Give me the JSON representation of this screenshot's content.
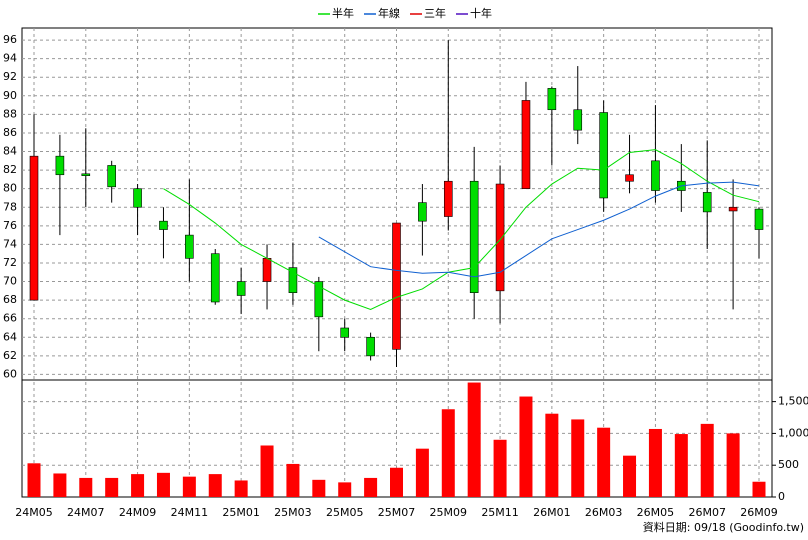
{
  "chart_data": {
    "type": "candlestick",
    "categories": [
      "24M05",
      null,
      "24M07",
      null,
      "24M09",
      null,
      "24M11",
      null,
      "25M01",
      null,
      "25M03",
      null,
      "25M05",
      null,
      "25M07",
      null,
      "25M09",
      null,
      "25M11",
      null,
      "26M01",
      null,
      "26M03",
      null,
      "26M05",
      null,
      "26M07",
      null,
      "26M09"
    ],
    "open": [
      68,
      83.5,
      81.6,
      82.5,
      80,
      76.5,
      75,
      73,
      70,
      70,
      71.5,
      70,
      65,
      64,
      62.7,
      78.5,
      77,
      80.8,
      69,
      80,
      90.8,
      88.5,
      88.2,
      80.8,
      83,
      80.8,
      79.6,
      77.6,
      77.8
    ],
    "high": [
      88,
      85.8,
      86.5,
      83,
      80.5,
      78,
      81,
      73.5,
      71.5,
      74,
      74.2,
      70.5,
      66,
      64.5,
      76.3,
      80.5,
      96,
      84.5,
      82.5,
      91.5,
      91,
      93.2,
      89.5,
      85.8,
      89,
      84.8,
      85.2,
      81,
      78
    ],
    "low": [
      68,
      75,
      78,
      78.5,
      75,
      72.5,
      70,
      67.5,
      66.5,
      67,
      67.5,
      62.5,
      62.5,
      61.5,
      60.8,
      72.8,
      75.5,
      66,
      65.5,
      80,
      82.5,
      84.8,
      77.5,
      79.5,
      78.5,
      77.5,
      73.5,
      67,
      72.5
    ],
    "close": [
      83.5,
      81.5,
      81.4,
      80.2,
      78,
      75.6,
      72.5,
      67.8,
      68.5,
      72.5,
      68.8,
      66.2,
      64,
      62,
      76.3,
      76.5,
      80.8,
      68.8,
      80.5,
      89.5,
      88.5,
      86.3,
      79,
      81.5,
      79.8,
      79.8,
      77.5,
      78,
      75.6
    ],
    "up_color": "#ff0000",
    "down_color": "#00dd00",
    "series": [
      {
        "name": "半年",
        "color": "#00dd00",
        "values": [
          null,
          null,
          null,
          null,
          null,
          80,
          78.3,
          76.3,
          74,
          72.5,
          71,
          69.5,
          68,
          67,
          68.3,
          69.2,
          71,
          71.5,
          74.5,
          78,
          80.5,
          82.2,
          82,
          83.9,
          84.2,
          82.7,
          80.8,
          79.3,
          78.6
        ]
      },
      {
        "name": "年線",
        "color": "#1060d0",
        "values": [
          null,
          null,
          null,
          null,
          null,
          null,
          null,
          null,
          null,
          null,
          null,
          74.8,
          73.2,
          71.6,
          71.2,
          70.9,
          71,
          70.5,
          71,
          72.8,
          74.6,
          75.6,
          76.6,
          77.8,
          79.2,
          80.3,
          80.6,
          80.7,
          80.3
        ]
      },
      {
        "name": "三年",
        "color": "#e00000",
        "values": [
          null,
          null,
          null,
          null,
          null,
          null,
          null,
          null,
          null,
          null,
          null,
          null,
          null,
          null,
          null,
          null,
          null,
          null,
          null,
          null,
          null,
          null,
          null,
          null,
          null,
          null,
          null,
          null,
          null
        ]
      },
      {
        "name": "十年",
        "color": "#5010c0",
        "values": [
          null,
          null,
          null,
          null,
          null,
          null,
          null,
          null,
          null,
          null,
          null,
          null,
          null,
          null,
          null,
          null,
          null,
          null,
          null,
          null,
          null,
          null,
          null,
          null,
          null,
          null,
          null,
          null,
          null
        ]
      }
    ],
    "ylim": [
      59.4,
      97.3
    ],
    "yticks": [
      60,
      62,
      64,
      66,
      68,
      70,
      72,
      74,
      76,
      78,
      80,
      82,
      84,
      86,
      88,
      90,
      92,
      94,
      96
    ],
    "grid": true,
    "volume": {
      "color": "#ff0000",
      "values": [
        530,
        370,
        300,
        300,
        360,
        380,
        320,
        360,
        260,
        810,
        520,
        270,
        230,
        300,
        460,
        760,
        1380,
        1800,
        900,
        1580,
        1310,
        1220,
        1090,
        650,
        1070,
        990,
        1150,
        1000,
        240
      ],
      "ylim": [
        0,
        1840
      ],
      "yticks": [
        0,
        500,
        {
          "value": 1000,
          "label": "1,000"
        },
        {
          "value": 1500,
          "label": "1,500"
        }
      ]
    },
    "footer": "資料日期: 09/18 (Goodinfo.tw)"
  }
}
